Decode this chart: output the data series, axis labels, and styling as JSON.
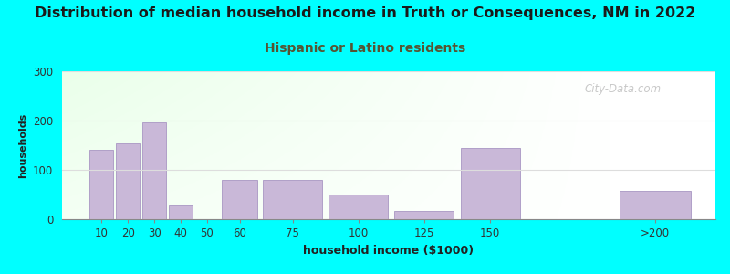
{
  "title": "Distribution of median household income in Truth or Consequences, NM in 2022",
  "subtitle": "Hispanic or Latino residents",
  "xlabel": "household income ($1000)",
  "ylabel": "households",
  "title_fontsize": 11.5,
  "subtitle_fontsize": 10,
  "subtitle_color": "#555533",
  "ylabel_fontsize": 8,
  "xlabel_fontsize": 9,
  "background_outer": "#00ffff",
  "bar_color": "#c9b8d8",
  "bar_edge_color": "#b0a0c8",
  "ylim": [
    0,
    300
  ],
  "yticks": [
    0,
    100,
    200,
    300
  ],
  "categories": [
    "10",
    "20",
    "30",
    "40",
    "50",
    "60",
    "75",
    "100",
    "125",
    "150",
    ">200"
  ],
  "values": [
    140,
    153,
    196,
    27,
    0,
    80,
    80,
    50,
    17,
    145,
    57
  ],
  "bar_positions": [
    10,
    20,
    30,
    40,
    50,
    60,
    75,
    100,
    125,
    150,
    210
  ],
  "bar_widths": [
    10,
    10,
    10,
    10,
    10,
    15,
    25,
    25,
    25,
    25,
    30
  ],
  "watermark_text": "City-Data.com",
  "watermark_color": "#aaaaaa"
}
